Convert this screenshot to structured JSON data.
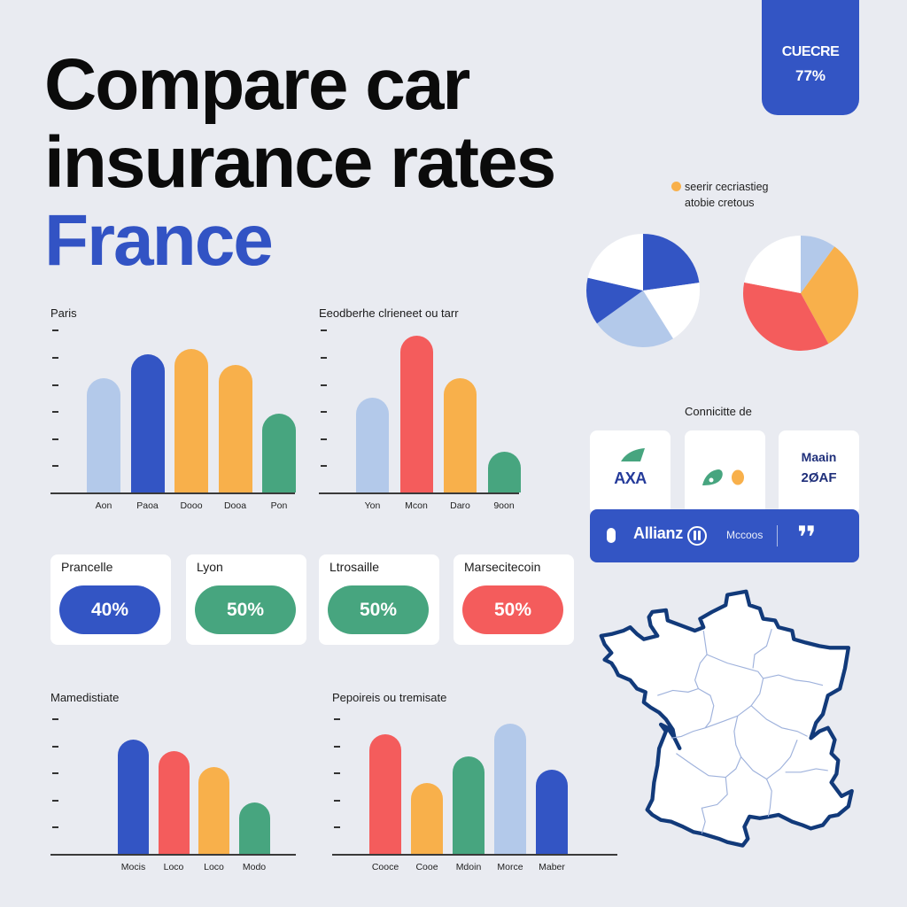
{
  "headline": {
    "line1": "Compare car",
    "line2": "insurance rates",
    "line3": "France"
  },
  "stat_card": {
    "label": "CUECRE",
    "value": "77%"
  },
  "legend": {
    "line1": "seerir cecriastieg",
    "line2": "atobie cretous",
    "dot_color": "#f8b04b"
  },
  "colors": {
    "blue": "#3355c4",
    "light_blue": "#b3c9ea",
    "orange": "#f8b04b",
    "red": "#f45c5c",
    "green": "#47a57f",
    "white": "#ffffff",
    "navy": "#123a7a"
  },
  "chart_data": [
    {
      "type": "bar",
      "title": "Paris",
      "categories": [
        "Aon",
        "Paoa",
        "Dooo",
        "Dooa",
        "Pon"
      ],
      "values": [
        4.2,
        5.1,
        5.3,
        4.7,
        2.9
      ],
      "colors": [
        "#b3c9ea",
        "#3355c4",
        "#f8b04b",
        "#f8b04b",
        "#47a57f"
      ],
      "ylim": [
        0,
        6
      ],
      "yticks": 6,
      "tick_labels_shown": false
    },
    {
      "type": "bar",
      "title": "Eeodberhe clrieneet ou tarr",
      "categories": [
        "Yon",
        "Mcon",
        "Daro",
        "9oon"
      ],
      "values": [
        3.5,
        5.8,
        4.2,
        1.5
      ],
      "colors": [
        "#b3c9ea",
        "#f45c5c",
        "#f8b04b",
        "#47a57f"
      ],
      "ylim": [
        0,
        6
      ],
      "yticks": 6,
      "tick_labels_shown": false
    },
    {
      "type": "bar",
      "title": "Mamedistiate",
      "categories": [
        "Mocis",
        "Loco",
        "Loco",
        "Modo"
      ],
      "values": [
        4.2,
        3.8,
        3.2,
        1.9
      ],
      "colors": [
        "#3355c4",
        "#f45c5c",
        "#f8b04b",
        "#47a57f"
      ],
      "ylim": [
        0,
        5
      ],
      "yticks": 5,
      "tick_labels_shown": false
    },
    {
      "type": "bar",
      "title": "Pepoireis ou tremisate",
      "categories": [
        "Cooce",
        "Cooe",
        "Mdoin",
        "Morce",
        "Maber"
      ],
      "values": [
        4.4,
        2.6,
        3.6,
        4.8,
        3.1
      ],
      "colors": [
        "#f45c5c",
        "#f8b04b",
        "#47a57f",
        "#b3c9ea",
        "#3355c4"
      ],
      "ylim": [
        0,
        5
      ],
      "yticks": 5,
      "tick_labels_shown": false
    },
    {
      "type": "pie",
      "title": "",
      "slices": [
        {
          "value": 22.8,
          "color": "#3355c4"
        },
        {
          "value": 18.3,
          "color": "#ffffff"
        },
        {
          "value": 24.0,
          "color": "#b3c9ea"
        },
        {
          "value": 13.5,
          "color": "#3355c4"
        },
        {
          "value": 21.4,
          "color": "#ffffff"
        }
      ],
      "start_angle_deg": 0,
      "direction": "clockwise"
    },
    {
      "type": "pie",
      "title": "",
      "slices": [
        {
          "value": 10,
          "color": "#b3c9ea"
        },
        {
          "value": 32,
          "color": "#f8b04b"
        },
        {
          "value": 36,
          "color": "#f45c5c"
        },
        {
          "value": 22,
          "color": "#ffffff"
        }
      ],
      "start_angle_deg": 0,
      "direction": "clockwise"
    }
  ],
  "rate_cards": [
    {
      "city": "Prancelle",
      "value": "40%",
      "color": "#3355c4"
    },
    {
      "city": "Lyon",
      "value": "50%",
      "color": "#47a57f"
    },
    {
      "city": "Ltrosaille",
      "value": "50%",
      "color": "#47a57f"
    },
    {
      "city": "Marsecitecoin",
      "value": "50%",
      "color": "#f45c5c"
    }
  ],
  "insurers": {
    "title": "Connicitte de",
    "cards": [
      {
        "name": "AXA"
      },
      {
        "name": ""
      },
      {
        "name_line1": "Maain",
        "name_line2": "2ØAF"
      }
    ],
    "bar": {
      "brand": "Allianz",
      "secondary": "Mccoos",
      "quote_glyph": "❜❜"
    }
  },
  "map": {
    "region": "France",
    "outline_color": "#123a7a",
    "border_color": "#9fb2dc"
  }
}
